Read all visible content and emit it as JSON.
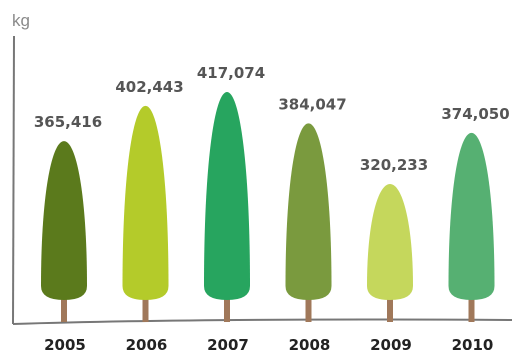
{
  "chart_data": {
    "type": "bar",
    "unit": "kg",
    "categories": [
      "2005",
      "2006",
      "2007",
      "2008",
      "2009",
      "2010"
    ],
    "values": [
      365416,
      402443,
      417074,
      384047,
      320233,
      374050
    ],
    "value_labels": [
      "365,416",
      "402,443",
      "417,074",
      "384,047",
      "320,233",
      "374,050"
    ],
    "colors": [
      "#5b7a1c",
      "#b4cb2a",
      "#27a55f",
      "#7a9a3e",
      "#c5d75c",
      "#56b072"
    ],
    "trunk_color": "#a0785a",
    "axis_color": "#777777",
    "grid": false,
    "legend": "none"
  }
}
